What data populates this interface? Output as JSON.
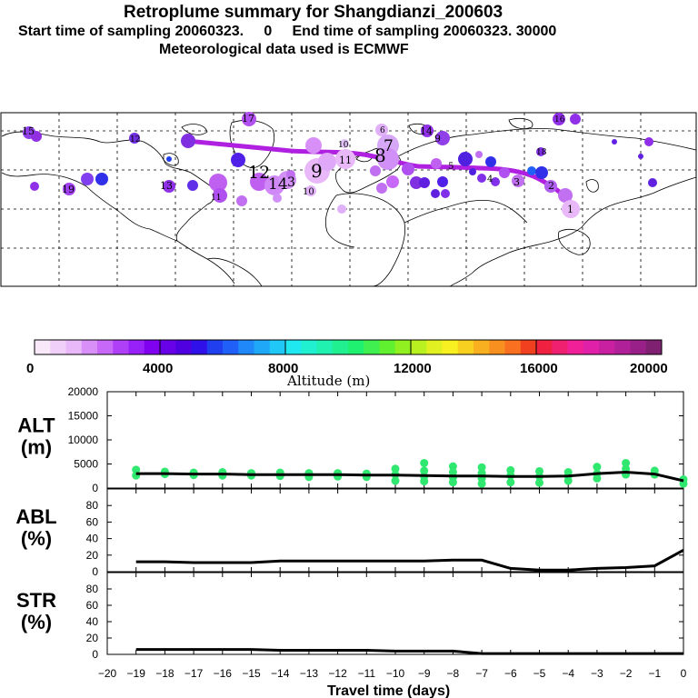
{
  "header": {
    "title": "Retroplume summary for Shangdianzi_200603",
    "line2": "Start time of sampling 20060323.     0     End time of sampling 20060323. 30000",
    "line3": "Meteorological data used is ECMWF"
  },
  "colorbar": {
    "ticks": [
      "0",
      "4000",
      "8000",
      "12000",
      "16000",
      "20000"
    ],
    "label": "Altitude (m)",
    "colors": [
      "#f8e8f8",
      "#f0d0f8",
      "#e8b8f8",
      "#d890f8",
      "#c868f8",
      "#b040f8",
      "#9820f8",
      "#8000f0",
      "#6800e8",
      "#5000e0",
      "#3010e8",
      "#2040f0",
      "#2060f8",
      "#2088f8",
      "#20a8f8",
      "#20c8f8",
      "#20e8f0",
      "#20f0d0",
      "#20f0b0",
      "#20f090",
      "#20f070",
      "#40f050",
      "#60f030",
      "#90f020",
      "#b8f020",
      "#e0f020",
      "#f8f020",
      "#f8d020",
      "#f8b020",
      "#f89020",
      "#f87020",
      "#f04020",
      "#f02040",
      "#f02070",
      "#f02098",
      "#e020a8",
      "#c820a0",
      "#b02098",
      "#982088",
      "#802070"
    ]
  },
  "map": {
    "numbers": [
      "15",
      "12",
      "17",
      "13",
      "10",
      "19",
      "14",
      "16",
      "18",
      "11",
      "9",
      "8",
      "7",
      "6",
      "5",
      "4",
      "3",
      "2",
      "1",
      "14",
      "3",
      "9",
      "11",
      "10",
      "12"
    ]
  },
  "chart_data": [
    {
      "type": "line",
      "name": "ALT",
      "ylabel": "ALT\n(m)",
      "ylabel_lines": [
        "ALT",
        "(m)"
      ],
      "xlim": [
        -20,
        0
      ],
      "ylim": [
        0,
        20000
      ],
      "yticks": [
        "20000",
        "15000",
        "10000",
        "5000",
        "0"
      ],
      "x": [
        -19,
        -18,
        -17,
        -16,
        -15,
        -14,
        -13,
        -12,
        -11,
        -10,
        -9,
        -8,
        -7,
        -6,
        -5,
        -4,
        -3,
        -2,
        -1,
        0
      ],
      "values": [
        3000,
        3000,
        2900,
        2900,
        2800,
        2800,
        2800,
        2800,
        2700,
        2700,
        2600,
        2500,
        2500,
        2400,
        2400,
        2500,
        3000,
        3300,
        2900,
        1500
      ],
      "scatter": [
        [
          -19,
          3800
        ],
        [
          -19,
          2600
        ],
        [
          -18,
          3400
        ],
        [
          -18,
          2900
        ],
        [
          -17,
          3200
        ],
        [
          -17,
          2700
        ],
        [
          -16,
          3300
        ],
        [
          -16,
          2600
        ],
        [
          -15,
          3100
        ],
        [
          -15,
          2600
        ],
        [
          -14,
          3200
        ],
        [
          -14,
          2500
        ],
        [
          -13,
          3100
        ],
        [
          -13,
          2300
        ],
        [
          -12,
          3100
        ],
        [
          -12,
          2400
        ],
        [
          -11,
          3000
        ],
        [
          -11,
          2300
        ],
        [
          -10,
          4000
        ],
        [
          -10,
          2800
        ],
        [
          -10,
          1500
        ],
        [
          -9,
          5200
        ],
        [
          -9,
          3600
        ],
        [
          -9,
          2400
        ],
        [
          -9,
          1400
        ],
        [
          -8,
          4500
        ],
        [
          -8,
          3300
        ],
        [
          -8,
          2200
        ],
        [
          -8,
          1200
        ],
        [
          -7,
          4300
        ],
        [
          -7,
          3100
        ],
        [
          -7,
          2000
        ],
        [
          -7,
          900
        ],
        [
          -6,
          3700
        ],
        [
          -6,
          2600
        ],
        [
          -6,
          1200
        ],
        [
          -5,
          3500
        ],
        [
          -5,
          2400
        ],
        [
          -5,
          1100
        ],
        [
          -4,
          3300
        ],
        [
          -4,
          2500
        ],
        [
          -4,
          1500
        ],
        [
          -3,
          4400
        ],
        [
          -3,
          3000
        ],
        [
          -3,
          2000
        ],
        [
          -2,
          5200
        ],
        [
          -2,
          4000
        ],
        [
          -2,
          2800
        ],
        [
          -1,
          3600
        ],
        [
          -1,
          2800
        ],
        [
          0,
          1800
        ],
        [
          0,
          900
        ]
      ]
    },
    {
      "type": "line",
      "name": "ABL",
      "ylabel_lines": [
        "ABL",
        "(%)"
      ],
      "xlim": [
        -20,
        0
      ],
      "ylim": [
        0,
        100
      ],
      "yticks": [
        "80",
        "60",
        "40",
        "20",
        "0"
      ],
      "x": [
        -19,
        -18,
        -17,
        -16,
        -15,
        -14,
        -13,
        -12,
        -11,
        -10,
        -9,
        -8,
        -7,
        -6,
        -5,
        -4,
        -3,
        -2,
        -1,
        0
      ],
      "values": [
        12,
        12,
        11,
        11,
        11,
        13,
        13,
        13,
        13,
        13,
        13,
        14,
        14,
        4,
        2,
        2,
        4,
        5,
        7,
        26
      ]
    },
    {
      "type": "line",
      "name": "STR",
      "ylabel_lines": [
        "STR",
        "(%)"
      ],
      "xlim": [
        -20,
        0
      ],
      "ylim": [
        0,
        100
      ],
      "yticks": [
        "80",
        "60",
        "40",
        "20",
        "0"
      ],
      "x": [
        -19,
        -18,
        -17,
        -16,
        -15,
        -14,
        -13,
        -12,
        -11,
        -10,
        -9,
        -8,
        -7,
        -6,
        -5,
        -4,
        -3,
        -2,
        -1,
        0
      ],
      "values": [
        6,
        6,
        6,
        6,
        6,
        5,
        5,
        5,
        5,
        4,
        4,
        4,
        1,
        1,
        1,
        1,
        1,
        1,
        1,
        1
      ]
    }
  ],
  "xaxis": {
    "label": "Travel time (days)",
    "ticks": [
      "−20",
      "−19",
      "−18",
      "−17",
      "−16",
      "−15",
      "−14",
      "−13",
      "−12",
      "−11",
      "−10",
      "−9",
      "−8",
      "−7",
      "−6",
      "−5",
      "−4",
      "−3",
      "−2",
      "−1",
      "0"
    ]
  }
}
